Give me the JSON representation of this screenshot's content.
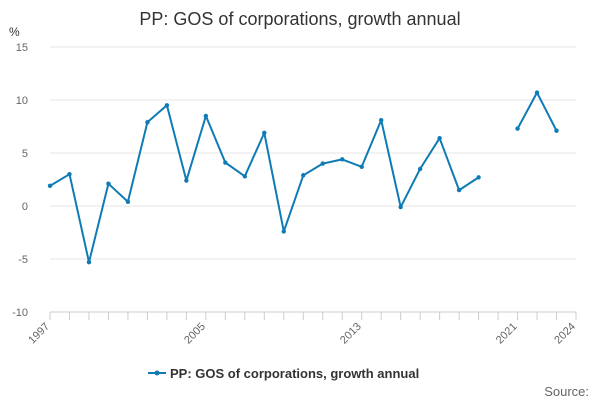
{
  "colors": {
    "series": "#0f7bb5"
  },
  "source_label": "Source:",
  "chart_data": {
    "type": "line",
    "title": "PP: GOS of corporations, growth annual",
    "unit_label": "%",
    "xlabel": "",
    "ylabel": "",
    "xlim": [
      1997,
      2024
    ],
    "ylim": [
      -10,
      15
    ],
    "yticks": [
      15,
      10,
      5,
      0,
      -5,
      -10
    ],
    "xticks": [
      1997,
      2005,
      2013,
      2021,
      2024
    ],
    "grid": true,
    "legend_position": "bottom",
    "x": [
      1997,
      1998,
      1999,
      2000,
      2001,
      2002,
      2003,
      2004,
      2005,
      2006,
      2007,
      2008,
      2009,
      2010,
      2011,
      2012,
      2013,
      2014,
      2015,
      2016,
      2017,
      2018,
      2019,
      2020,
      2021,
      2022,
      2023
    ],
    "series": [
      {
        "name": "PP: GOS of corporations, growth annual",
        "values": [
          1.9,
          3.0,
          -5.3,
          2.1,
          0.4,
          7.9,
          9.5,
          2.4,
          8.5,
          4.1,
          2.8,
          6.9,
          -2.4,
          2.9,
          4.0,
          4.4,
          3.7,
          8.1,
          -0.1,
          3.5,
          6.4,
          1.5,
          2.7,
          null,
          7.3,
          10.7,
          7.1
        ]
      }
    ]
  }
}
